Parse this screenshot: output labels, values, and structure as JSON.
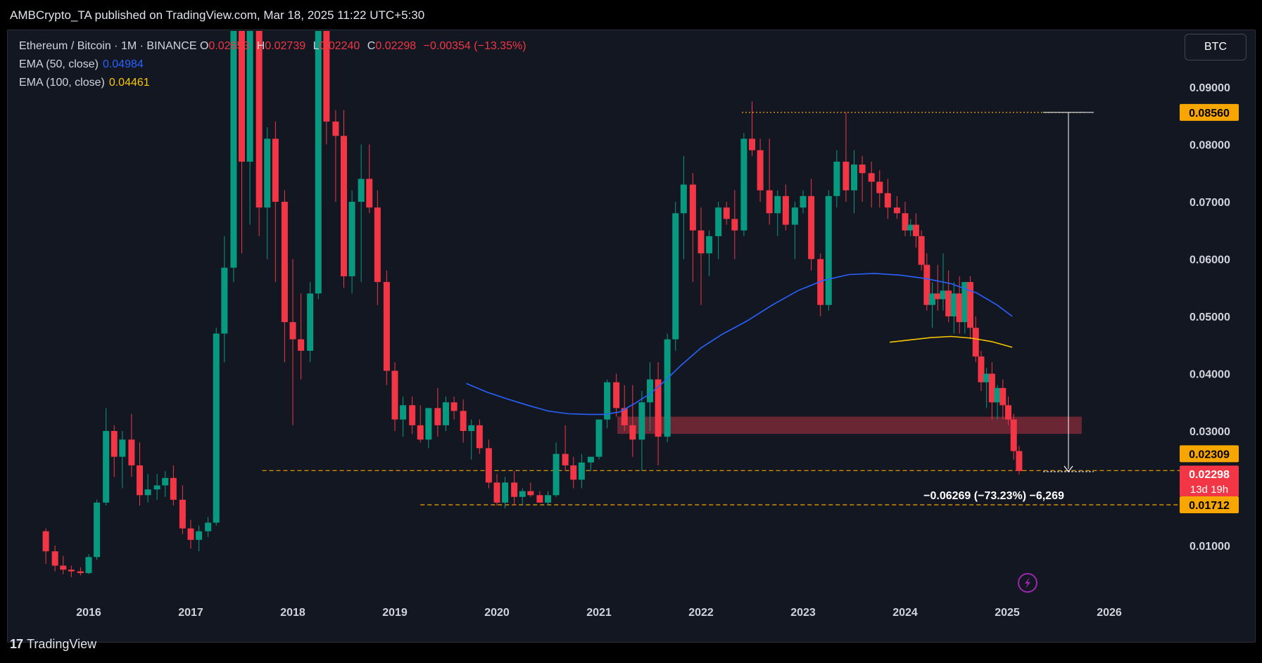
{
  "header": {
    "published_text": "AMBCrypto_TA published on TradingView.com, Mar 18, 2025 11:22 UTC+5:30"
  },
  "legend": {
    "symbol": "Ethereum / Bitcoin · 1M · BINANCE",
    "open_key": "O",
    "open_val": "0.02653",
    "high_key": "H",
    "high_val": "0.02739",
    "low_key": "L",
    "low_val": "0.02240",
    "close_key": "C",
    "close_val": "0.02298",
    "change": "−0.00354 (−13.35%)",
    "ema50_label": "EMA (50, close)",
    "ema50_val": "0.04984",
    "ema100_label": "EMA (100, close)",
    "ema100_val": "0.04461"
  },
  "toolbar": {
    "currency_label": "BTC"
  },
  "footer": {
    "brand": "TradingView",
    "brand_mark": "17"
  },
  "colors": {
    "up": "#089981",
    "down": "#f23645",
    "ema50": "#2962ff",
    "ema100": "#f7c600",
    "orange": "#f7a600",
    "zone": "#7a2a36",
    "background": "#131722"
  },
  "chart_data": {
    "type": "candlestick",
    "interval": "1M",
    "ylim": [
      0.003,
      0.1
    ],
    "x_ticks": [
      "2016",
      "2017",
      "2018",
      "2019",
      "2020",
      "2021",
      "2022",
      "2023",
      "2024",
      "2025",
      "2026"
    ],
    "y_ticks": [
      "0.09000",
      "0.08000",
      "0.07000",
      "0.06000",
      "0.05000",
      "0.04000",
      "0.03000",
      "0.01000"
    ],
    "price_badges": [
      {
        "value": 0.0856,
        "label": "0.08560",
        "color": "#f7a600",
        "text_color": "#000000"
      },
      {
        "value": 0.02309,
        "label": "0.02309",
        "color": "#f7a600",
        "text_color": "#000000"
      },
      {
        "value": 0.02298,
        "label": "0.02298",
        "sub": "13d 19h",
        "color": "#f23645",
        "text_color": "#ffffff"
      },
      {
        "value": 0.01712,
        "label": "0.01712",
        "color": "#f7a600",
        "text_color": "#000000"
      }
    ],
    "horizontal_lines": [
      {
        "value": 0.0856,
        "from": 2022.4,
        "to": 2025.75,
        "style": "dotted"
      },
      {
        "value": 0.02309,
        "from": 2017.7,
        "to": 2026.7,
        "style": "dashed"
      },
      {
        "value": 0.01712,
        "from": 2019.25,
        "to": 2026.7,
        "style": "dashed"
      }
    ],
    "support_zone": {
      "from": 2021.18,
      "to": 2025.73,
      "low": 0.0295,
      "high": 0.0325
    },
    "measure": {
      "x": 2025.6,
      "from": 0.0856,
      "to": 0.0229,
      "label": "−0.06269 (−73.23%) −6,269"
    },
    "ema50": [
      [
        2019.7,
        0.0383
      ],
      [
        2019.9,
        0.0368
      ],
      [
        2020.1,
        0.0356
      ],
      [
        2020.3,
        0.0345
      ],
      [
        2020.5,
        0.0335
      ],
      [
        2020.7,
        0.033
      ],
      [
        2020.9,
        0.0329
      ],
      [
        2021.05,
        0.0329
      ],
      [
        2021.2,
        0.0333
      ],
      [
        2021.35,
        0.0348
      ],
      [
        2021.5,
        0.0365
      ],
      [
        2021.65,
        0.0388
      ],
      [
        2021.8,
        0.0414
      ],
      [
        2022.0,
        0.0445
      ],
      [
        2022.2,
        0.0468
      ],
      [
        2022.45,
        0.0492
      ],
      [
        2022.7,
        0.052
      ],
      [
        2022.95,
        0.0545
      ],
      [
        2023.2,
        0.0563
      ],
      [
        2023.45,
        0.0573
      ],
      [
        2023.7,
        0.0575
      ],
      [
        2023.95,
        0.0572
      ],
      [
        2024.2,
        0.0566
      ],
      [
        2024.45,
        0.0557
      ],
      [
        2024.7,
        0.0541
      ],
      [
        2024.9,
        0.052
      ],
      [
        2025.05,
        0.05
      ]
    ],
    "ema100": [
      [
        2023.85,
        0.0455
      ],
      [
        2024.05,
        0.0459
      ],
      [
        2024.25,
        0.0463
      ],
      [
        2024.45,
        0.0465
      ],
      [
        2024.65,
        0.0462
      ],
      [
        2024.85,
        0.0456
      ],
      [
        2025.05,
        0.0446
      ]
    ],
    "candles": [
      {
        "t": 2015.58,
        "o": 0.0125,
        "h": 0.013,
        "l": 0.0068,
        "c": 0.009
      },
      {
        "t": 2015.67,
        "o": 0.009,
        "h": 0.01,
        "l": 0.0055,
        "c": 0.0065
      },
      {
        "t": 2015.75,
        "o": 0.0065,
        "h": 0.0082,
        "l": 0.005,
        "c": 0.0058
      },
      {
        "t": 2015.83,
        "o": 0.0058,
        "h": 0.0065,
        "l": 0.0045,
        "c": 0.0055
      },
      {
        "t": 2015.92,
        "o": 0.0055,
        "h": 0.0062,
        "l": 0.0048,
        "c": 0.0052
      },
      {
        "t": 2016.0,
        "o": 0.0052,
        "h": 0.0085,
        "l": 0.005,
        "c": 0.008
      },
      {
        "t": 2016.08,
        "o": 0.008,
        "h": 0.018,
        "l": 0.0075,
        "c": 0.0175
      },
      {
        "t": 2016.17,
        "o": 0.0175,
        "h": 0.034,
        "l": 0.017,
        "c": 0.03
      },
      {
        "t": 2016.25,
        "o": 0.03,
        "h": 0.031,
        "l": 0.022,
        "c": 0.0255
      },
      {
        "t": 2016.33,
        "o": 0.0255,
        "h": 0.03,
        "l": 0.02,
        "c": 0.0285
      },
      {
        "t": 2016.42,
        "o": 0.0285,
        "h": 0.033,
        "l": 0.022,
        "c": 0.024
      },
      {
        "t": 2016.5,
        "o": 0.024,
        "h": 0.028,
        "l": 0.017,
        "c": 0.0188
      },
      {
        "t": 2016.58,
        "o": 0.0188,
        "h": 0.0225,
        "l": 0.0175,
        "c": 0.0198
      },
      {
        "t": 2016.67,
        "o": 0.0198,
        "h": 0.0225,
        "l": 0.018,
        "c": 0.0205
      },
      {
        "t": 2016.75,
        "o": 0.0205,
        "h": 0.023,
        "l": 0.0185,
        "c": 0.0218
      },
      {
        "t": 2016.83,
        "o": 0.0218,
        "h": 0.024,
        "l": 0.017,
        "c": 0.018
      },
      {
        "t": 2016.92,
        "o": 0.018,
        "h": 0.0205,
        "l": 0.012,
        "c": 0.013
      },
      {
        "t": 2017.0,
        "o": 0.013,
        "h": 0.0145,
        "l": 0.0095,
        "c": 0.011
      },
      {
        "t": 2017.08,
        "o": 0.011,
        "h": 0.0135,
        "l": 0.009,
        "c": 0.0125
      },
      {
        "t": 2017.17,
        "o": 0.0125,
        "h": 0.015,
        "l": 0.0115,
        "c": 0.014
      },
      {
        "t": 2017.25,
        "o": 0.014,
        "h": 0.048,
        "l": 0.0135,
        "c": 0.047
      },
      {
        "t": 2017.33,
        "o": 0.047,
        "h": 0.064,
        "l": 0.042,
        "c": 0.0585
      },
      {
        "t": 2017.42,
        "o": 0.0585,
        "h": 0.1,
        "l": 0.056,
        "c": 0.1
      },
      {
        "t": 2017.5,
        "o": 0.1,
        "h": 0.1,
        "l": 0.061,
        "c": 0.077
      },
      {
        "t": 2017.58,
        "o": 0.077,
        "h": 0.1,
        "l": 0.066,
        "c": 0.1
      },
      {
        "t": 2017.67,
        "o": 0.1,
        "h": 0.1,
        "l": 0.064,
        "c": 0.069
      },
      {
        "t": 2017.75,
        "o": 0.069,
        "h": 0.083,
        "l": 0.06,
        "c": 0.081
      },
      {
        "t": 2017.83,
        "o": 0.081,
        "h": 0.084,
        "l": 0.056,
        "c": 0.07
      },
      {
        "t": 2017.92,
        "o": 0.07,
        "h": 0.072,
        "l": 0.042,
        "c": 0.049
      },
      {
        "t": 2018.0,
        "o": 0.049,
        "h": 0.06,
        "l": 0.031,
        "c": 0.046
      },
      {
        "t": 2018.08,
        "o": 0.046,
        "h": 0.054,
        "l": 0.039,
        "c": 0.044
      },
      {
        "t": 2018.17,
        "o": 0.044,
        "h": 0.056,
        "l": 0.042,
        "c": 0.054
      },
      {
        "t": 2018.25,
        "o": 0.054,
        "h": 0.1,
        "l": 0.053,
        "c": 0.1
      },
      {
        "t": 2018.33,
        "o": 0.1,
        "h": 0.1,
        "l": 0.08,
        "c": 0.084
      },
      {
        "t": 2018.42,
        "o": 0.084,
        "h": 0.086,
        "l": 0.07,
        "c": 0.0815
      },
      {
        "t": 2018.5,
        "o": 0.0815,
        "h": 0.086,
        "l": 0.055,
        "c": 0.057
      },
      {
        "t": 2018.58,
        "o": 0.057,
        "h": 0.072,
        "l": 0.054,
        "c": 0.07
      },
      {
        "t": 2018.67,
        "o": 0.07,
        "h": 0.08,
        "l": 0.056,
        "c": 0.074
      },
      {
        "t": 2018.75,
        "o": 0.074,
        "h": 0.08,
        "l": 0.068,
        "c": 0.069
      },
      {
        "t": 2018.83,
        "o": 0.069,
        "h": 0.072,
        "l": 0.052,
        "c": 0.056
      },
      {
        "t": 2018.92,
        "o": 0.056,
        "h": 0.058,
        "l": 0.038,
        "c": 0.0405
      },
      {
        "t": 2019.0,
        "o": 0.0405,
        "h": 0.042,
        "l": 0.03,
        "c": 0.032
      },
      {
        "t": 2019.08,
        "o": 0.032,
        "h": 0.036,
        "l": 0.029,
        "c": 0.0345
      },
      {
        "t": 2019.17,
        "o": 0.0345,
        "h": 0.036,
        "l": 0.0295,
        "c": 0.031
      },
      {
        "t": 2019.25,
        "o": 0.031,
        "h": 0.0345,
        "l": 0.028,
        "c": 0.0285
      },
      {
        "t": 2019.33,
        "o": 0.0285,
        "h": 0.034,
        "l": 0.027,
        "c": 0.034
      },
      {
        "t": 2019.42,
        "o": 0.034,
        "h": 0.0375,
        "l": 0.029,
        "c": 0.031
      },
      {
        "t": 2019.5,
        "o": 0.031,
        "h": 0.036,
        "l": 0.03,
        "c": 0.035
      },
      {
        "t": 2019.58,
        "o": 0.035,
        "h": 0.036,
        "l": 0.032,
        "c": 0.0335
      },
      {
        "t": 2019.67,
        "o": 0.0335,
        "h": 0.0355,
        "l": 0.028,
        "c": 0.03
      },
      {
        "t": 2019.75,
        "o": 0.03,
        "h": 0.032,
        "l": 0.025,
        "c": 0.031
      },
      {
        "t": 2019.83,
        "o": 0.031,
        "h": 0.032,
        "l": 0.026,
        "c": 0.027
      },
      {
        "t": 2019.92,
        "o": 0.027,
        "h": 0.0285,
        "l": 0.02,
        "c": 0.021
      },
      {
        "t": 2020.0,
        "o": 0.021,
        "h": 0.0225,
        "l": 0.017,
        "c": 0.0175
      },
      {
        "t": 2020.08,
        "o": 0.0175,
        "h": 0.022,
        "l": 0.0165,
        "c": 0.021
      },
      {
        "t": 2020.17,
        "o": 0.021,
        "h": 0.023,
        "l": 0.017,
        "c": 0.0185
      },
      {
        "t": 2020.25,
        "o": 0.0185,
        "h": 0.02,
        "l": 0.017,
        "c": 0.0195
      },
      {
        "t": 2020.33,
        "o": 0.0195,
        "h": 0.021,
        "l": 0.0185,
        "c": 0.0188
      },
      {
        "t": 2020.42,
        "o": 0.0188,
        "h": 0.0195,
        "l": 0.0175,
        "c": 0.0175
      },
      {
        "t": 2020.5,
        "o": 0.0175,
        "h": 0.0195,
        "l": 0.017,
        "c": 0.0188
      },
      {
        "t": 2020.58,
        "o": 0.0188,
        "h": 0.028,
        "l": 0.0185,
        "c": 0.026
      },
      {
        "t": 2020.67,
        "o": 0.026,
        "h": 0.031,
        "l": 0.023,
        "c": 0.024
      },
      {
        "t": 2020.75,
        "o": 0.024,
        "h": 0.0255,
        "l": 0.02,
        "c": 0.0215
      },
      {
        "t": 2020.83,
        "o": 0.0215,
        "h": 0.026,
        "l": 0.02,
        "c": 0.0245
      },
      {
        "t": 2020.92,
        "o": 0.0245,
        "h": 0.0255,
        "l": 0.023,
        "c": 0.0255
      },
      {
        "t": 2021.0,
        "o": 0.0255,
        "h": 0.032,
        "l": 0.025,
        "c": 0.032
      },
      {
        "t": 2021.08,
        "o": 0.032,
        "h": 0.039,
        "l": 0.0305,
        "c": 0.0385
      },
      {
        "t": 2021.17,
        "o": 0.0385,
        "h": 0.04,
        "l": 0.0325,
        "c": 0.034
      },
      {
        "t": 2021.25,
        "o": 0.034,
        "h": 0.038,
        "l": 0.03,
        "c": 0.031
      },
      {
        "t": 2021.33,
        "o": 0.031,
        "h": 0.038,
        "l": 0.0255,
        "c": 0.0285
      },
      {
        "t": 2021.42,
        "o": 0.0285,
        "h": 0.037,
        "l": 0.023,
        "c": 0.035
      },
      {
        "t": 2021.5,
        "o": 0.035,
        "h": 0.042,
        "l": 0.03,
        "c": 0.039
      },
      {
        "t": 2021.58,
        "o": 0.039,
        "h": 0.042,
        "l": 0.024,
        "c": 0.029
      },
      {
        "t": 2021.67,
        "o": 0.029,
        "h": 0.047,
        "l": 0.028,
        "c": 0.046
      },
      {
        "t": 2021.75,
        "o": 0.046,
        "h": 0.07,
        "l": 0.044,
        "c": 0.068
      },
      {
        "t": 2021.83,
        "o": 0.068,
        "h": 0.078,
        "l": 0.06,
        "c": 0.073
      },
      {
        "t": 2021.92,
        "o": 0.073,
        "h": 0.075,
        "l": 0.056,
        "c": 0.065
      },
      {
        "t": 2022.0,
        "o": 0.065,
        "h": 0.069,
        "l": 0.052,
        "c": 0.061
      },
      {
        "t": 2022.08,
        "o": 0.061,
        "h": 0.065,
        "l": 0.057,
        "c": 0.064
      },
      {
        "t": 2022.17,
        "o": 0.064,
        "h": 0.07,
        "l": 0.06,
        "c": 0.069
      },
      {
        "t": 2022.25,
        "o": 0.069,
        "h": 0.07,
        "l": 0.066,
        "c": 0.067
      },
      {
        "t": 2022.33,
        "o": 0.067,
        "h": 0.072,
        "l": 0.06,
        "c": 0.065
      },
      {
        "t": 2022.42,
        "o": 0.065,
        "h": 0.082,
        "l": 0.064,
        "c": 0.081
      },
      {
        "t": 2022.5,
        "o": 0.081,
        "h": 0.0875,
        "l": 0.078,
        "c": 0.079
      },
      {
        "t": 2022.58,
        "o": 0.079,
        "h": 0.081,
        "l": 0.07,
        "c": 0.072
      },
      {
        "t": 2022.67,
        "o": 0.072,
        "h": 0.081,
        "l": 0.066,
        "c": 0.068
      },
      {
        "t": 2022.75,
        "o": 0.068,
        "h": 0.072,
        "l": 0.064,
        "c": 0.071
      },
      {
        "t": 2022.83,
        "o": 0.071,
        "h": 0.073,
        "l": 0.065,
        "c": 0.066
      },
      {
        "t": 2022.92,
        "o": 0.066,
        "h": 0.07,
        "l": 0.06,
        "c": 0.069
      },
      {
        "t": 2023.0,
        "o": 0.069,
        "h": 0.072,
        "l": 0.068,
        "c": 0.071
      },
      {
        "t": 2023.08,
        "o": 0.071,
        "h": 0.074,
        "l": 0.058,
        "c": 0.06
      },
      {
        "t": 2023.17,
        "o": 0.06,
        "h": 0.061,
        "l": 0.05,
        "c": 0.052
      },
      {
        "t": 2023.25,
        "o": 0.052,
        "h": 0.072,
        "l": 0.051,
        "c": 0.071
      },
      {
        "t": 2023.33,
        "o": 0.071,
        "h": 0.079,
        "l": 0.069,
        "c": 0.077
      },
      {
        "t": 2023.42,
        "o": 0.077,
        "h": 0.0856,
        "l": 0.07,
        "c": 0.072
      },
      {
        "t": 2023.5,
        "o": 0.072,
        "h": 0.079,
        "l": 0.068,
        "c": 0.0765
      },
      {
        "t": 2023.58,
        "o": 0.0765,
        "h": 0.078,
        "l": 0.07,
        "c": 0.075
      },
      {
        "t": 2023.67,
        "o": 0.075,
        "h": 0.077,
        "l": 0.069,
        "c": 0.0735
      },
      {
        "t": 2023.75,
        "o": 0.0735,
        "h": 0.0755,
        "l": 0.069,
        "c": 0.0715
      },
      {
        "t": 2023.83,
        "o": 0.0715,
        "h": 0.074,
        "l": 0.067,
        "c": 0.069
      },
      {
        "t": 2023.92,
        "o": 0.069,
        "h": 0.071,
        "l": 0.067,
        "c": 0.068
      }
    ]
  }
}
